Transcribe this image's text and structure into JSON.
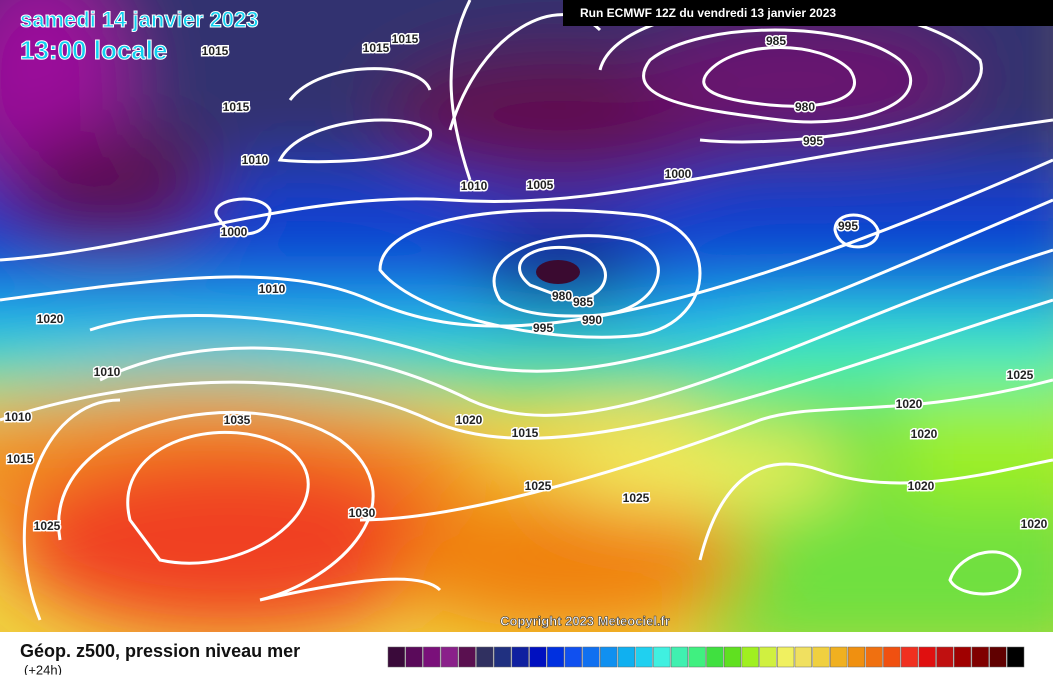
{
  "header": {
    "date": "samedi 14 janvier 2023",
    "time": "13:00 locale",
    "run": "Run ECMWF 12Z du vendredi 13 janvier 2023"
  },
  "map": {
    "isobar_labels": [
      "1015",
      "1015",
      "1015",
      "1015",
      "1010",
      "1010",
      "1005",
      "1000",
      "1000",
      "985",
      "980",
      "995",
      "995",
      "1010",
      "980",
      "985",
      "990",
      "995",
      "1020",
      "1010",
      "1010",
      "1015",
      "1035",
      "1020",
      "1015",
      "1025",
      "1025",
      "1030",
      "1025",
      "1025",
      "1020",
      "1020",
      "1020",
      "1020"
    ],
    "copyright": "Copyright 2023 Meteociel.fr"
  },
  "legend": {
    "title": "Géop. z500, pression niveau mer",
    "lead": "(+24h)",
    "colors": [
      "#3a0a3a",
      "#5a0a5a",
      "#7a107a",
      "#8a208a",
      "#5a1050",
      "#303060",
      "#203080",
      "#1020a0",
      "#0010c0",
      "#0030e0",
      "#1050f0",
      "#1070f0",
      "#1090f0",
      "#10b0f0",
      "#20d0f0",
      "#40f0e0",
      "#40f0b0",
      "#40f080",
      "#40e040",
      "#60e020",
      "#a0f020",
      "#d0f040",
      "#f0f060",
      "#f0e060",
      "#f0d040",
      "#f0b020",
      "#f09010",
      "#f07010",
      "#f05010",
      "#f03020",
      "#e01010",
      "#c01010",
      "#a00000",
      "#800000",
      "#600000",
      "#000000"
    ]
  }
}
